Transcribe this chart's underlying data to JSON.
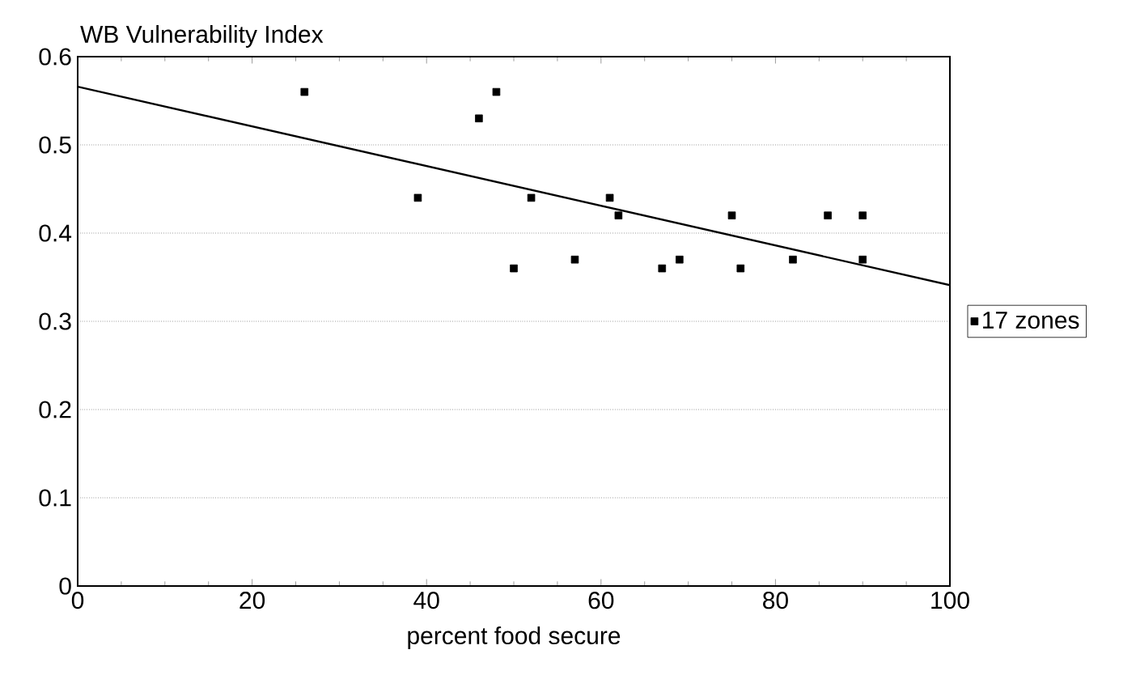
{
  "chart_data": {
    "type": "scatter",
    "ylabel": "WB Vulnerability Index",
    "xlabel": "percent food secure",
    "xlim": [
      0,
      100
    ],
    "xticks": [
      0,
      20,
      40,
      60,
      80,
      100
    ],
    "ylim": [
      0,
      0.6
    ],
    "yticks": [
      0,
      0.1,
      0.2,
      0.3,
      0.4,
      0.5,
      0.6
    ],
    "grid": "y",
    "legend": "right",
    "series": [
      {
        "name": "17 zones",
        "color": "#000000",
        "marker": "square",
        "x": [
          26,
          39,
          46,
          48,
          50,
          52,
          57,
          61,
          62,
          67,
          69,
          75,
          76,
          82,
          86,
          90,
          90
        ],
        "values": [
          0.56,
          0.44,
          0.53,
          0.56,
          0.36,
          0.44,
          0.37,
          0.44,
          0.42,
          0.36,
          0.37,
          0.42,
          0.36,
          0.37,
          0.42,
          0.42,
          0.37
        ]
      },
      {
        "type": "line",
        "color": "#000000",
        "line_style": "solid",
        "x": [
          0,
          100
        ],
        "values": [
          0.566,
          0.341
        ]
      }
    ]
  }
}
